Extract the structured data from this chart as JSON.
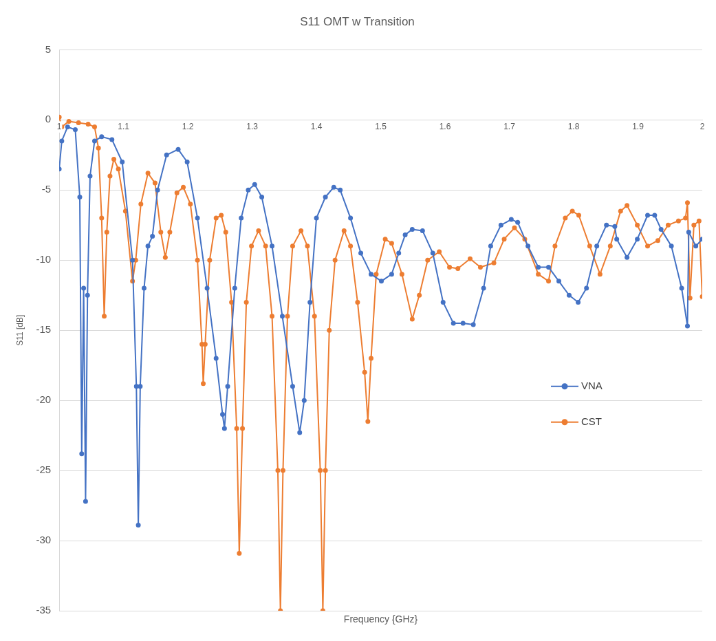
{
  "chart_data": {
    "type": "line",
    "title": "S11 OMT w Transition",
    "xlabel": "Frequency {GHz}",
    "ylabel": "S11 [dB]",
    "xlim": [
      1,
      2
    ],
    "xticks": [
      1,
      1.1,
      1.2,
      1.3,
      1.4,
      1.5,
      1.6,
      1.7,
      1.8,
      1.9,
      2
    ],
    "ylim": [
      -35,
      5
    ],
    "yticks": [
      -35,
      -30,
      -25,
      -20,
      -15,
      -10,
      -5,
      0,
      5
    ],
    "grid": "y",
    "legend": "right",
    "marker": "circle",
    "line_style": "solid",
    "series": [
      {
        "name": "VNA",
        "color": "#4472c4",
        "x": [
          1,
          1.004,
          1.013,
          1.025,
          1.032,
          1.035,
          1.038,
          1.041,
          1.044,
          1.048,
          1.055,
          1.066,
          1.082,
          1.098,
          1.114,
          1.12,
          1.123,
          1.126,
          1.132,
          1.138,
          1.145,
          1.153,
          1.167,
          1.185,
          1.199,
          1.215,
          1.23,
          1.244,
          1.254,
          1.257,
          1.262,
          1.273,
          1.283,
          1.294,
          1.304,
          1.315,
          1.331,
          1.347,
          1.363,
          1.374,
          1.381,
          1.39,
          1.4,
          1.414,
          1.427,
          1.437,
          1.453,
          1.469,
          1.485,
          1.501,
          1.517,
          1.528,
          1.538,
          1.549,
          1.565,
          1.581,
          1.597,
          1.613,
          1.628,
          1.644,
          1.66,
          1.671,
          1.687,
          1.703,
          1.713,
          1.729,
          1.745,
          1.761,
          1.777,
          1.793,
          1.807,
          1.82,
          1.836,
          1.851,
          1.864,
          1.867,
          1.883,
          1.899,
          1.915,
          1.926,
          1.936,
          1.952,
          1.968,
          1.977,
          1.979,
          1.99,
          2
        ],
        "values": [
          -3.5,
          -1.5,
          -0.5,
          -0.7,
          -5.5,
          -23.8,
          -12,
          -27.2,
          -12.5,
          -4,
          -1.5,
          -1.2,
          -1.4,
          -3,
          -10,
          -19,
          -28.9,
          -19,
          -12,
          -9,
          -8.3,
          -5,
          -2.5,
          -2.1,
          -3,
          -7,
          -12,
          -17,
          -21,
          -22,
          -19,
          -12,
          -7,
          -5,
          -4.6,
          -5.5,
          -9,
          -14,
          -19,
          -22.3,
          -20,
          -13,
          -7,
          -5.5,
          -4.8,
          -5,
          -7,
          -9.5,
          -11,
          -11.5,
          -11,
          -9.5,
          -8.2,
          -7.8,
          -7.9,
          -9.5,
          -13,
          -14.5,
          -14.5,
          -14.6,
          -12,
          -9,
          -7.5,
          -7.1,
          -7.3,
          -9,
          -10.5,
          -10.5,
          -11.5,
          -12.5,
          -13,
          -12,
          -9,
          -7.5,
          -7.6,
          -8.5,
          -9.8,
          -8.5,
          -6.8,
          -6.8,
          -7.8,
          -9,
          -12,
          -14.7,
          -8,
          -9,
          -8.5
        ]
      },
      {
        "name": "CST",
        "color": "#ed7d31",
        "x": [
          1,
          1.004,
          1.015,
          1.03,
          1.045,
          1.055,
          1.061,
          1.066,
          1.07,
          1.074,
          1.079,
          1.085,
          1.092,
          1.103,
          1.114,
          1.119,
          1.127,
          1.138,
          1.149,
          1.158,
          1.165,
          1.172,
          1.183,
          1.193,
          1.204,
          1.215,
          1.222,
          1.224,
          1.227,
          1.234,
          1.244,
          1.252,
          1.259,
          1.268,
          1.276,
          1.28,
          1.285,
          1.291,
          1.299,
          1.31,
          1.321,
          1.331,
          1.34,
          1.344,
          1.348,
          1.355,
          1.363,
          1.376,
          1.386,
          1.397,
          1.406,
          1.41,
          1.414,
          1.42,
          1.429,
          1.443,
          1.453,
          1.464,
          1.475,
          1.48,
          1.485,
          1.493,
          1.507,
          1.517,
          1.533,
          1.549,
          1.56,
          1.573,
          1.591,
          1.607,
          1.62,
          1.639,
          1.655,
          1.676,
          1.692,
          1.708,
          1.724,
          1.745,
          1.761,
          1.771,
          1.787,
          1.798,
          1.808,
          1.825,
          1.841,
          1.857,
          1.873,
          1.883,
          1.899,
          1.915,
          1.931,
          1.947,
          1.963,
          1.974,
          1.977,
          1.981,
          1.987,
          1.995,
          2
        ],
        "values": [
          0.2,
          -0.5,
          -0.1,
          -0.2,
          -0.3,
          -0.5,
          -2,
          -7,
          -14,
          -8,
          -4,
          -2.8,
          -3.5,
          -6.5,
          -11.5,
          -10,
          -6,
          -3.8,
          -4.5,
          -8,
          -9.8,
          -8,
          -5.2,
          -4.8,
          -6,
          -10,
          -16,
          -18.8,
          -16,
          -10,
          -7,
          -6.8,
          -8,
          -13,
          -22,
          -30.9,
          -22,
          -13,
          -9,
          -7.9,
          -9,
          -14,
          -25,
          -35,
          -25,
          -14,
          -9,
          -7.9,
          -9,
          -14,
          -25,
          -35,
          -25,
          -15,
          -10,
          -7.9,
          -9,
          -13,
          -18,
          -21.5,
          -17,
          -11,
          -8.5,
          -8.8,
          -11,
          -14.2,
          -12.5,
          -10,
          -9.4,
          -10.5,
          -10.6,
          -9.9,
          -10.5,
          -10.2,
          -8.5,
          -7.7,
          -8.5,
          -11,
          -11.5,
          -9,
          -7,
          -6.5,
          -6.8,
          -9,
          -11,
          -9,
          -6.5,
          -6.1,
          -7.5,
          -9,
          -8.6,
          -7.5,
          -7.2,
          -7,
          -5.9,
          -12.7,
          -7.5,
          -7.2,
          -12.6
        ]
      }
    ]
  }
}
